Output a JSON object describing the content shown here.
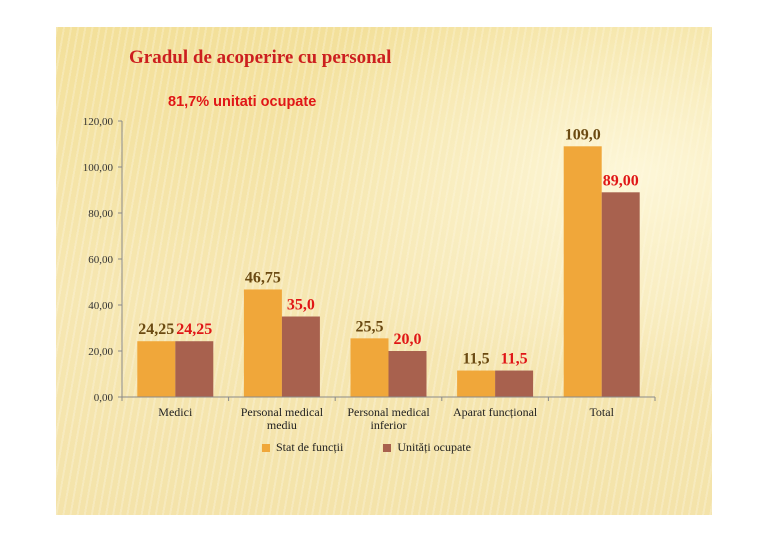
{
  "chart_data": {
    "type": "bar",
    "title": "Gradul de acoperire cu personal",
    "subtitle": "81,7% unitati ocupate",
    "categories": [
      "Medici",
      "Personal medical mediu",
      "Personal medical inferior",
      "Aparat funcțional",
      "Total"
    ],
    "category_lines": [
      [
        "Medici"
      ],
      [
        "Personal medical",
        "mediu"
      ],
      [
        "Personal medical",
        "inferior"
      ],
      [
        "Aparat funcțional"
      ],
      [
        "Total"
      ]
    ],
    "series": [
      {
        "name": "Stat de funcții",
        "values": [
          24.25,
          46.75,
          25.5,
          11.5,
          109.0
        ],
        "labels": [
          "24,25",
          "46,75",
          "25,5",
          "11,5",
          "109,0"
        ],
        "color": "#f0a73a",
        "label_color": "#6b4a12"
      },
      {
        "name": "Unități ocupate",
        "values": [
          24.25,
          35.0,
          20.0,
          11.5,
          89.0
        ],
        "labels": [
          "24,25",
          "35,0",
          "20,0",
          "11,5",
          "89,00"
        ],
        "color": "#a8614e",
        "label_color": "#e01616"
      }
    ],
    "ylim": [
      0,
      120
    ],
    "yticks": [
      0,
      20,
      40,
      60,
      80,
      100,
      120
    ],
    "ytick_labels": [
      "0,00",
      "20,00",
      "40,00",
      "60,00",
      "80,00",
      "100,00",
      "120,00"
    ],
    "grid": false,
    "legend_position": "bottom"
  }
}
